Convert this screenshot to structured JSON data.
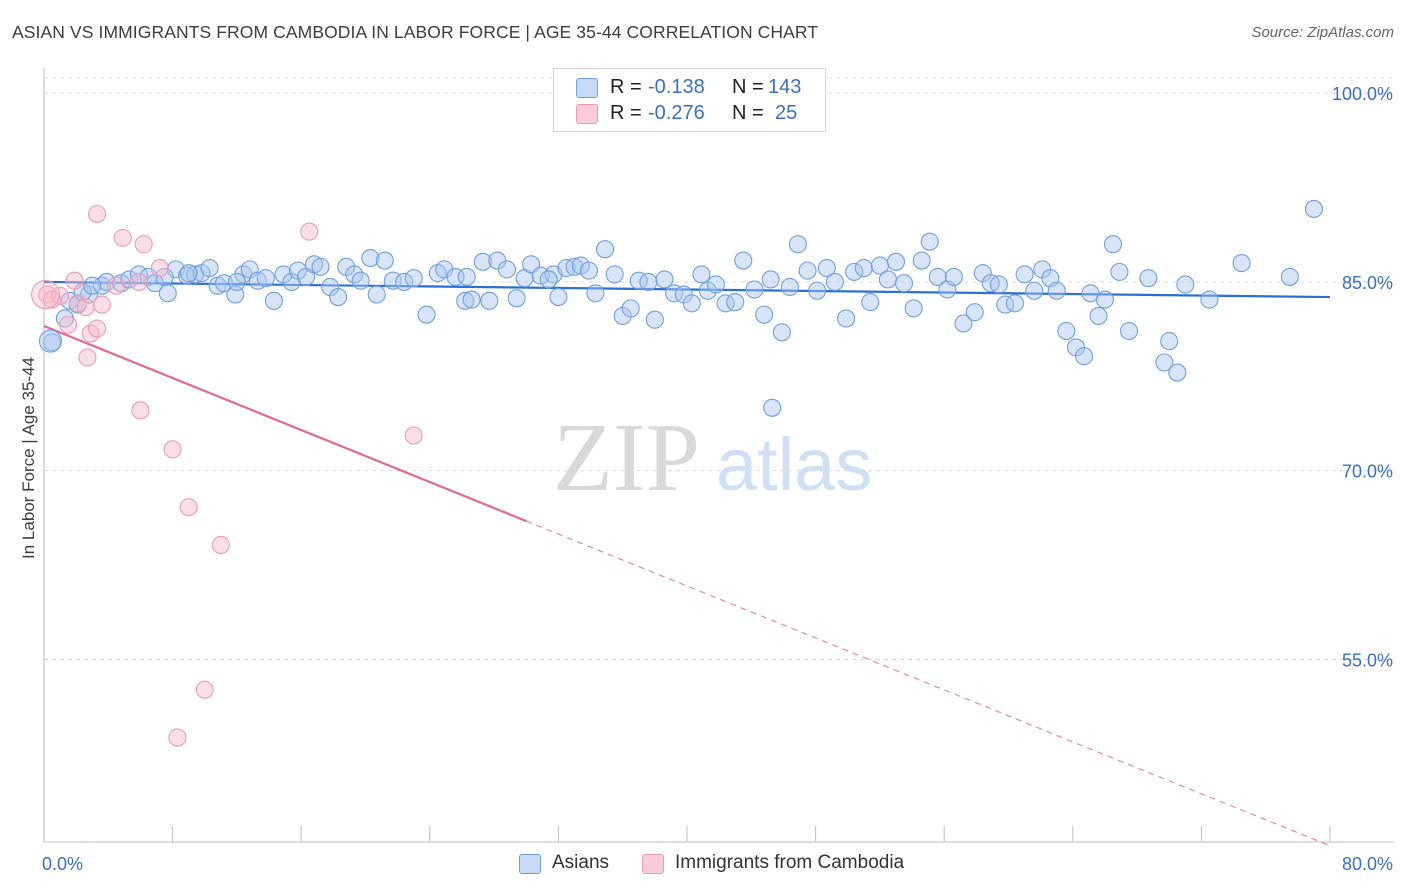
{
  "header": {
    "title": "ASIAN VS IMMIGRANTS FROM CAMBODIA IN LABOR FORCE | AGE 35-44 CORRELATION CHART",
    "source": "Source: ZipAtlas.com"
  },
  "watermark": {
    "zip": "ZIP",
    "atlas": "atlas"
  },
  "stats_legend": [
    {
      "r_label": "R =",
      "r_value": "-0.138",
      "n_label": "N =",
      "n_value": "143",
      "color": "#a9c6f0"
    },
    {
      "r_label": "R =",
      "r_value": "-0.276",
      "n_label": "N =",
      "n_value": "25",
      "color": "#f5b8cb"
    }
  ],
  "chart_data": {
    "type": "scatter",
    "ylabel": "In Labor Force | Age 35-44",
    "xlim": [
      0,
      80
    ],
    "ylim": [
      40.5,
      102
    ],
    "x_ticks": [
      {
        "value": 0,
        "label": "0.0%"
      },
      {
        "value": 80,
        "label": "80.0%"
      }
    ],
    "y_ticks": [
      {
        "value": 100,
        "label": "100.0%"
      },
      {
        "value": 85,
        "label": "85.0%"
      },
      {
        "value": 70,
        "label": "70.0%"
      },
      {
        "value": 55,
        "label": "55.0%"
      }
    ],
    "grid": {
      "horizontal": true,
      "style": "dashed"
    },
    "legend_position": "bottom-center",
    "series": [
      {
        "name": "Asians",
        "color": "#6f9fe0",
        "fill": "#a9c6f0",
        "trend": {
          "x": [
            0,
            80
          ],
          "y": [
            85.0,
            83.8
          ],
          "color": "#2b6fd0"
        },
        "points": [
          [
            0.5,
            80.2
          ],
          [
            1.3,
            82.1
          ],
          [
            1.6,
            83.5
          ],
          [
            2.1,
            83.2
          ],
          [
            2.8,
            84.0
          ],
          [
            3.6,
            84.7
          ],
          [
            3.9,
            85.0
          ],
          [
            4.8,
            84.9
          ],
          [
            5.3,
            85.2
          ],
          [
            5.9,
            85.6
          ],
          [
            6.5,
            85.4
          ],
          [
            6.9,
            84.9
          ],
          [
            7.7,
            84.1
          ],
          [
            8.2,
            86.0
          ],
          [
            8.9,
            85.5
          ],
          [
            9.4,
            85.6
          ],
          [
            9.8,
            85.7
          ],
          [
            10.3,
            86.1
          ],
          [
            10.8,
            84.7
          ],
          [
            11.2,
            84.9
          ],
          [
            11.9,
            84.0
          ],
          [
            12.4,
            85.6
          ],
          [
            12.8,
            86.0
          ],
          [
            13.3,
            85.1
          ],
          [
            13.8,
            85.3
          ],
          [
            14.3,
            83.5
          ],
          [
            14.9,
            85.6
          ],
          [
            15.4,
            85.0
          ],
          [
            15.8,
            85.9
          ],
          [
            16.3,
            85.4
          ],
          [
            16.8,
            86.4
          ],
          [
            17.2,
            86.2
          ],
          [
            17.8,
            84.6
          ],
          [
            18.3,
            83.8
          ],
          [
            18.8,
            86.2
          ],
          [
            19.3,
            85.6
          ],
          [
            19.7,
            85.1
          ],
          [
            20.3,
            86.9
          ],
          [
            20.7,
            84.0
          ],
          [
            21.2,
            86.7
          ],
          [
            21.7,
            85.1
          ],
          [
            22.4,
            85.0
          ],
          [
            23.0,
            85.3
          ],
          [
            23.8,
            82.4
          ],
          [
            24.5,
            85.7
          ],
          [
            24.9,
            86.0
          ],
          [
            25.6,
            85.4
          ],
          [
            26.2,
            83.5
          ],
          [
            26.6,
            83.6
          ],
          [
            27.3,
            86.6
          ],
          [
            27.7,
            83.5
          ],
          [
            28.2,
            86.7
          ],
          [
            28.8,
            86.0
          ],
          [
            29.4,
            83.7
          ],
          [
            29.9,
            85.3
          ],
          [
            30.3,
            86.4
          ],
          [
            30.9,
            85.5
          ],
          [
            31.7,
            85.6
          ],
          [
            32.0,
            83.8
          ],
          [
            32.5,
            86.1
          ],
          [
            33.0,
            86.2
          ],
          [
            33.4,
            86.3
          ],
          [
            33.9,
            85.9
          ],
          [
            34.3,
            84.1
          ],
          [
            34.9,
            87.6
          ],
          [
            35.5,
            85.6
          ],
          [
            36.0,
            82.3
          ],
          [
            36.5,
            82.9
          ],
          [
            37.0,
            85.1
          ],
          [
            37.6,
            85.0
          ],
          [
            38.0,
            82.0
          ],
          [
            38.6,
            85.2
          ],
          [
            39.2,
            84.1
          ],
          [
            39.8,
            84.0
          ],
          [
            40.3,
            83.3
          ],
          [
            40.9,
            85.6
          ],
          [
            41.3,
            84.3
          ],
          [
            41.8,
            84.8
          ],
          [
            42.4,
            83.3
          ],
          [
            43.0,
            83.4
          ],
          [
            43.5,
            86.7
          ],
          [
            44.2,
            84.4
          ],
          [
            44.8,
            82.4
          ],
          [
            45.2,
            85.2
          ],
          [
            45.9,
            81.0
          ],
          [
            46.4,
            84.6
          ],
          [
            46.9,
            88.0
          ],
          [
            47.5,
            85.9
          ],
          [
            48.1,
            84.3
          ],
          [
            48.7,
            86.1
          ],
          [
            49.2,
            85.0
          ],
          [
            49.9,
            82.1
          ],
          [
            50.4,
            85.8
          ],
          [
            51.0,
            86.1
          ],
          [
            51.4,
            83.4
          ],
          [
            52.0,
            86.3
          ],
          [
            52.5,
            85.2
          ],
          [
            53.0,
            86.6
          ],
          [
            53.5,
            84.9
          ],
          [
            54.1,
            82.9
          ],
          [
            54.6,
            86.7
          ],
          [
            55.1,
            88.2
          ],
          [
            55.6,
            85.4
          ],
          [
            56.2,
            84.4
          ],
          [
            56.6,
            85.4
          ],
          [
            57.2,
            81.7
          ],
          [
            57.9,
            82.6
          ],
          [
            58.4,
            85.7
          ],
          [
            58.9,
            84.9
          ],
          [
            59.4,
            84.8
          ],
          [
            59.8,
            83.2
          ],
          [
            60.4,
            83.3
          ],
          [
            61.0,
            85.6
          ],
          [
            61.6,
            84.3
          ],
          [
            62.1,
            86.0
          ],
          [
            62.6,
            85.3
          ],
          [
            63.0,
            84.3
          ],
          [
            63.6,
            81.1
          ],
          [
            64.2,
            79.8
          ],
          [
            64.7,
            79.1
          ],
          [
            65.1,
            84.1
          ],
          [
            65.6,
            82.3
          ],
          [
            66.0,
            83.6
          ],
          [
            66.5,
            88.0
          ],
          [
            66.9,
            85.8
          ],
          [
            67.5,
            81.1
          ],
          [
            68.7,
            85.3
          ],
          [
            69.7,
            78.6
          ],
          [
            70.0,
            80.3
          ],
          [
            70.5,
            77.8
          ],
          [
            71.0,
            84.8
          ],
          [
            72.5,
            83.6
          ],
          [
            74.5,
            86.5
          ],
          [
            77.5,
            85.4
          ],
          [
            79.0,
            90.8
          ],
          [
            45.3,
            75.0
          ],
          [
            2.4,
            84.2
          ],
          [
            3.0,
            84.7
          ],
          [
            7.5,
            85.4
          ],
          [
            9.0,
            85.7
          ],
          [
            12.0,
            85.0
          ],
          [
            26.3,
            85.4
          ],
          [
            31.4,
            85.2
          ]
        ]
      },
      {
        "name": "Immigrants from Cambodia",
        "color": "#ee9ab3",
        "fill": "#f5b8cb",
        "trend": {
          "x": [
            0,
            30
          ],
          "y": [
            81.5,
            66.0
          ],
          "x_ext": [
            30,
            80
          ],
          "y_ext": [
            66.0,
            40.2
          ],
          "color": "#e16a94"
        },
        "points": [
          [
            0.2,
            84.0
          ],
          [
            0.5,
            83.6
          ],
          [
            1.0,
            83.9
          ],
          [
            1.5,
            81.6
          ],
          [
            1.9,
            85.1
          ],
          [
            2.1,
            83.3
          ],
          [
            2.6,
            83.0
          ],
          [
            2.9,
            80.9
          ],
          [
            2.7,
            79.0
          ],
          [
            3.3,
            81.3
          ],
          [
            3.6,
            83.2
          ],
          [
            3.3,
            90.4
          ],
          [
            4.5,
            84.7
          ],
          [
            4.9,
            88.5
          ],
          [
            6.2,
            88.0
          ],
          [
            7.2,
            86.1
          ],
          [
            6.0,
            74.8
          ],
          [
            8.0,
            71.7
          ],
          [
            9.0,
            67.1
          ],
          [
            11.0,
            64.1
          ],
          [
            10.0,
            52.6
          ],
          [
            8.3,
            48.8
          ],
          [
            16.5,
            89.0
          ],
          [
            23.0,
            72.8
          ],
          [
            5.9,
            85.0
          ]
        ]
      }
    ]
  }
}
